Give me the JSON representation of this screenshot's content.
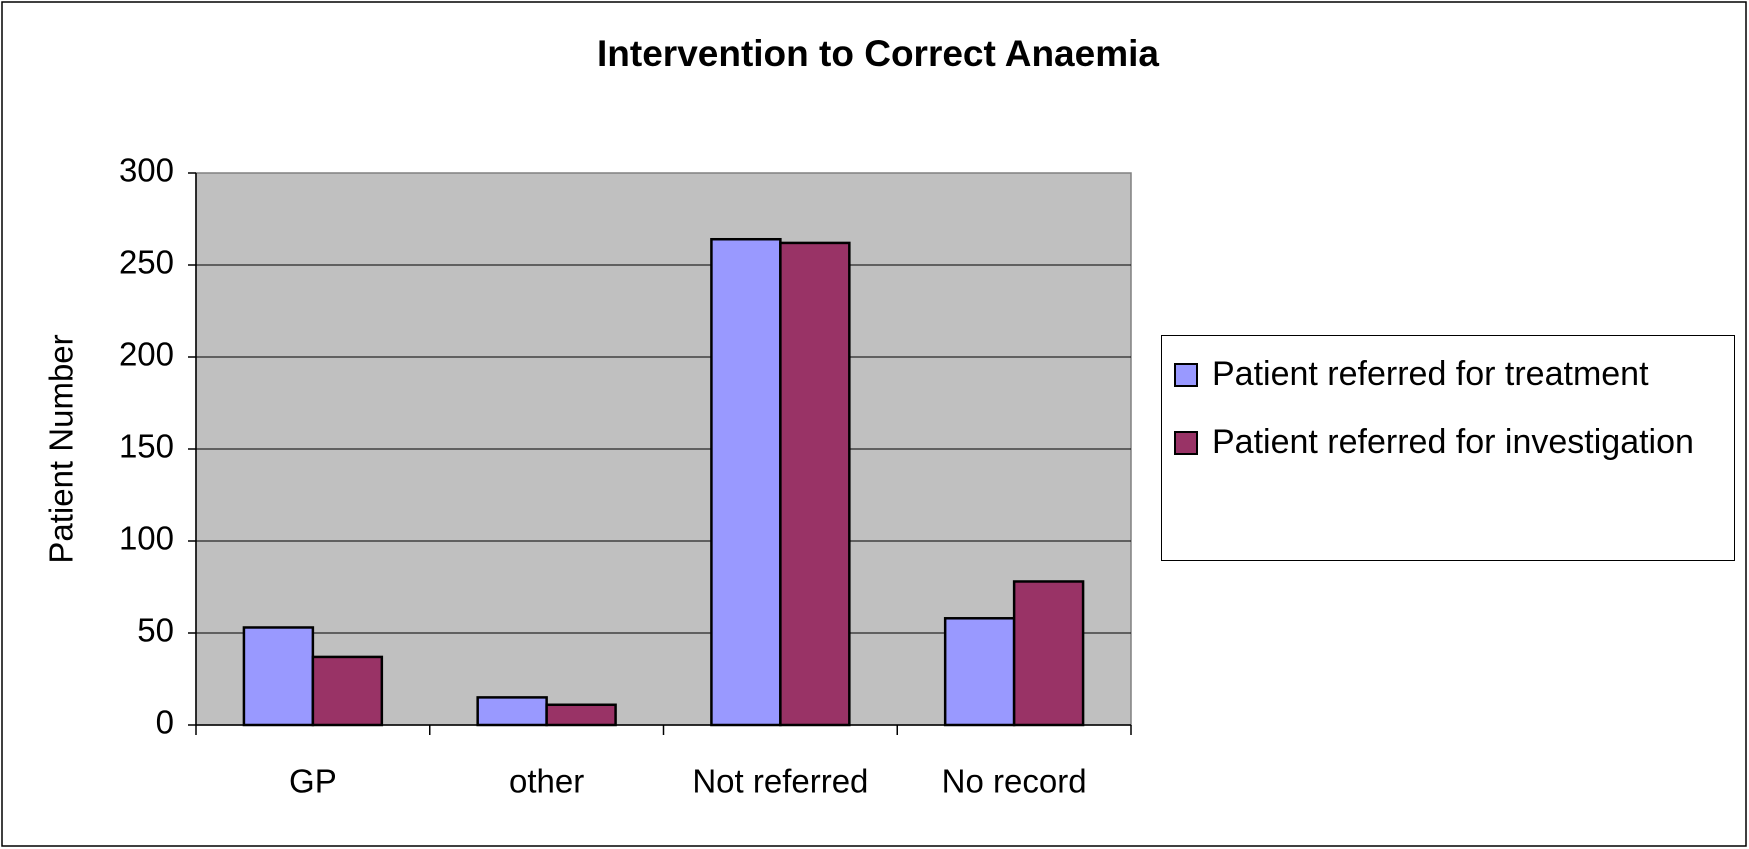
{
  "chart_data": {
    "type": "bar",
    "title": "Intervention to Correct Anaemia",
    "y_label": "Patient Number",
    "categories": [
      "GP",
      "other",
      "Not referred",
      "No record"
    ],
    "series": [
      {
        "name": "Patient referred for treatment",
        "color": "#9999ff",
        "values": [
          53,
          15,
          264,
          58
        ]
      },
      {
        "name": "Patient referred for investigation",
        "color": "#993366",
        "values": [
          37,
          11,
          262,
          78
        ]
      }
    ],
    "ylim": [
      0,
      300
    ],
    "yticks": [
      0,
      50,
      100,
      150,
      200,
      250,
      300
    ],
    "grid": true,
    "legend": "right"
  }
}
